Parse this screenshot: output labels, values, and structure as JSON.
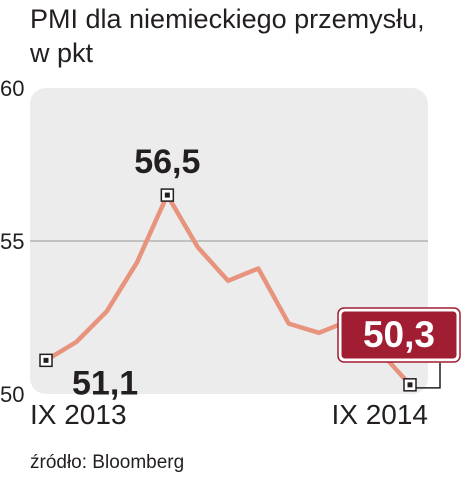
{
  "title_line1": "PMI dla niemieckiego przemysłu,",
  "title_line2": "w pkt",
  "source": "źródło: Bloomberg",
  "colors": {
    "line": "#e8937d",
    "panel": "#ececec",
    "grid": "#a7a7a7",
    "text": "#231f20",
    "callout": "#a11d32"
  },
  "chart_data": {
    "type": "line",
    "title": "PMI dla niemieckiego przemysłu, w pkt",
    "xlabel": "",
    "ylabel": "",
    "ylim": [
      50,
      60
    ],
    "yticks": [
      60,
      55,
      50
    ],
    "x_start_label": "IX 2013",
    "x_end_label": "IX 2014",
    "grid": "horizontal line at 55",
    "series": [
      {
        "values": [
          51.1,
          51.7,
          52.7,
          54.3,
          56.5,
          54.8,
          53.7,
          54.1,
          52.3,
          52.0,
          52.4,
          51.4,
          50.3
        ]
      }
    ],
    "annotations": {
      "first": "51,1",
      "peak": "56,5",
      "last": "50,3"
    }
  }
}
